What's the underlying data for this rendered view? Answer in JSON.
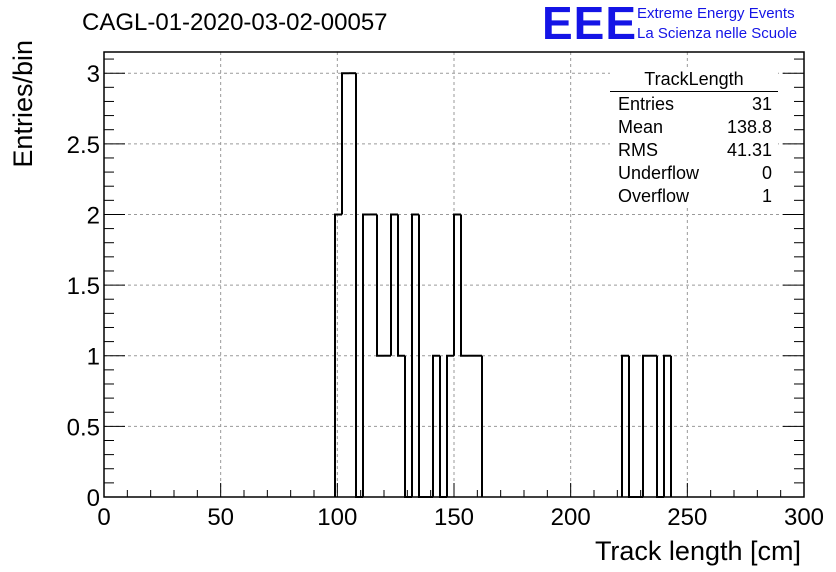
{
  "header": {
    "title": "CAGL-01-2020-03-02-00057",
    "logo_mark": "EEE",
    "logo_line1": "Extreme Energy Events",
    "logo_line2": "La Scienza nelle Scuole"
  },
  "stats": {
    "name": "TrackLength",
    "rows": [
      {
        "label": "Entries",
        "value": "31"
      },
      {
        "label": "Mean",
        "value": "138.8"
      },
      {
        "label": "RMS",
        "value": "41.31"
      },
      {
        "label": "Underflow",
        "value": "0"
      },
      {
        "label": "Overflow",
        "value": "1"
      }
    ]
  },
  "chart_data": {
    "type": "bar",
    "histogram": true,
    "xlabel": "Track length [cm]",
    "ylabel": "Entries/bin",
    "xlim": [
      0,
      300
    ],
    "ylim": [
      0,
      3.15
    ],
    "xticks": [
      0,
      50,
      100,
      150,
      200,
      250,
      300
    ],
    "yticks": [
      0,
      0.5,
      1,
      1.5,
      2,
      2.5,
      3
    ],
    "ytick_labels": [
      "0",
      "0.5",
      "1",
      "1.5",
      "2",
      "2.5",
      "3"
    ],
    "grid": true,
    "line_color": "#000000",
    "bin_width": 3,
    "bins": [
      {
        "x": 99,
        "value": 2
      },
      {
        "x": 102,
        "value": 3
      },
      {
        "x": 105,
        "value": 3
      },
      {
        "x": 108,
        "value": 0
      },
      {
        "x": 111,
        "value": 2
      },
      {
        "x": 114,
        "value": 2
      },
      {
        "x": 117,
        "value": 1
      },
      {
        "x": 120,
        "value": 1
      },
      {
        "x": 123,
        "value": 2
      },
      {
        "x": 126,
        "value": 1
      },
      {
        "x": 129,
        "value": 0
      },
      {
        "x": 132,
        "value": 2
      },
      {
        "x": 135,
        "value": 0
      },
      {
        "x": 138,
        "value": 0
      },
      {
        "x": 141,
        "value": 1
      },
      {
        "x": 144,
        "value": 0
      },
      {
        "x": 147,
        "value": 1
      },
      {
        "x": 150,
        "value": 2
      },
      {
        "x": 153,
        "value": 1
      },
      {
        "x": 156,
        "value": 1
      },
      {
        "x": 159,
        "value": 1
      },
      {
        "x": 222,
        "value": 1
      },
      {
        "x": 225,
        "value": 0
      },
      {
        "x": 228,
        "value": 0
      },
      {
        "x": 231,
        "value": 1
      },
      {
        "x": 234,
        "value": 1
      },
      {
        "x": 237,
        "value": 0
      },
      {
        "x": 240,
        "value": 1
      }
    ]
  }
}
